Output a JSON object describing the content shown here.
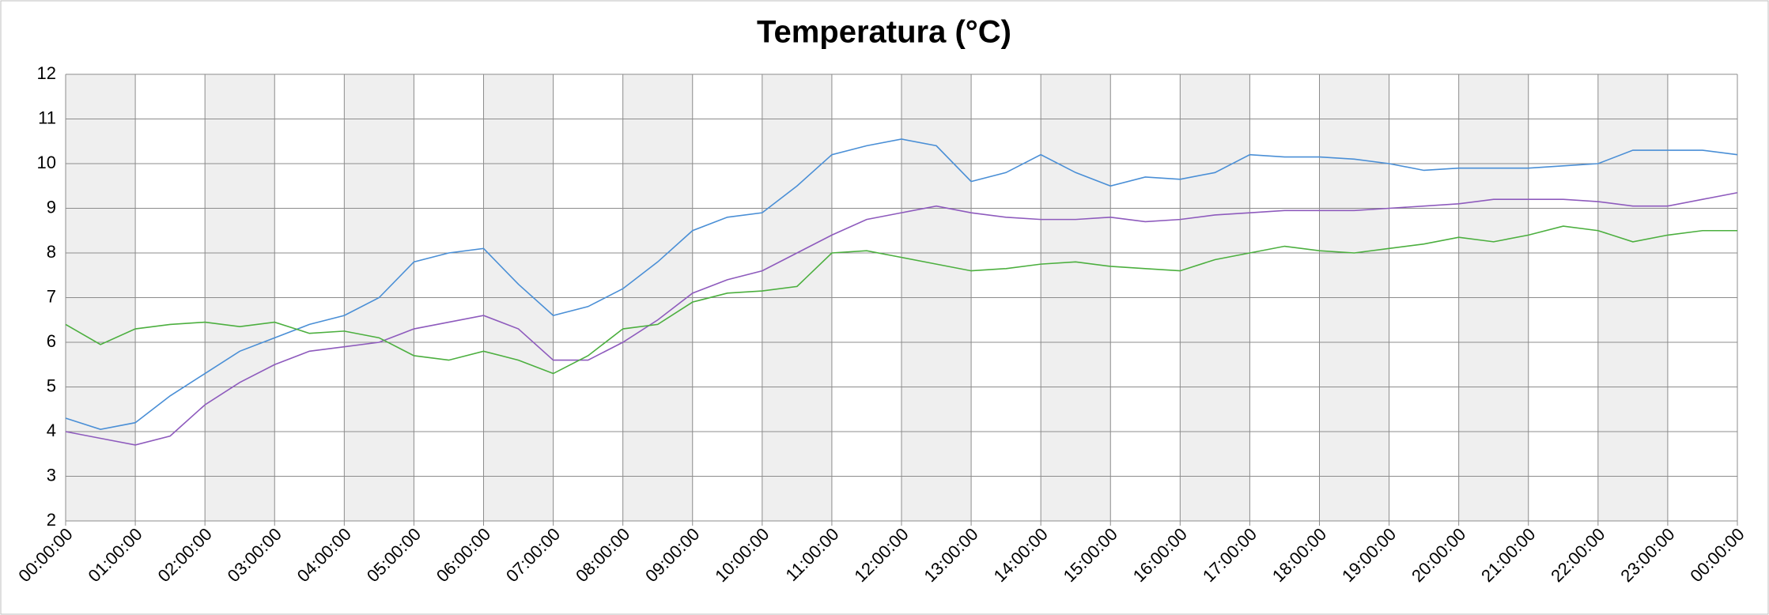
{
  "chart_data": {
    "type": "line",
    "title": "Temperatura (°C)",
    "x": [
      0,
      0.5,
      1,
      1.5,
      2,
      2.5,
      3,
      3.5,
      4,
      4.5,
      5,
      5.5,
      6,
      6.5,
      7,
      7.5,
      8,
      8.5,
      9,
      9.5,
      10,
      10.5,
      11,
      11.5,
      12,
      12.5,
      13,
      13.5,
      14,
      14.5,
      15,
      15.5,
      16,
      16.5,
      17,
      17.5,
      18,
      18.5,
      19,
      19.5,
      20,
      20.5,
      21,
      21.5,
      22,
      22.5,
      23,
      23.5,
      24
    ],
    "series": [
      {
        "color": "#4a8fd6",
        "values": [
          4.3,
          4.05,
          4.2,
          4.8,
          5.3,
          5.8,
          6.1,
          6.4,
          6.6,
          7.0,
          7.8,
          8.0,
          8.1,
          7.3,
          6.6,
          6.8,
          7.2,
          7.8,
          8.5,
          8.8,
          8.9,
          9.5,
          10.2,
          10.4,
          10.55,
          10.4,
          9.6,
          9.8,
          10.2,
          9.8,
          9.5,
          9.7,
          9.65,
          9.8,
          10.2,
          10.15,
          10.15,
          10.1,
          10.0,
          9.85,
          9.9,
          9.9,
          9.9,
          9.95,
          10.0,
          10.3,
          10.3,
          10.3,
          10.2
        ]
      },
      {
        "color": "#8e5bbd",
        "values": [
          4.0,
          3.85,
          3.7,
          3.9,
          4.6,
          5.1,
          5.5,
          5.8,
          5.9,
          6.0,
          6.3,
          6.45,
          6.6,
          6.3,
          5.6,
          5.6,
          6.0,
          6.5,
          7.1,
          7.4,
          7.6,
          8.0,
          8.4,
          8.75,
          8.9,
          9.05,
          8.9,
          8.8,
          8.75,
          8.75,
          8.8,
          8.7,
          8.75,
          8.85,
          8.9,
          8.95,
          8.95,
          8.95,
          9.0,
          9.05,
          9.1,
          9.2,
          9.2,
          9.2,
          9.15,
          9.05,
          9.05,
          9.2,
          9.35
        ]
      },
      {
        "color": "#4caf3f",
        "values": [
          6.4,
          5.95,
          6.3,
          6.4,
          6.45,
          6.35,
          6.45,
          6.2,
          6.25,
          6.1,
          5.7,
          5.6,
          5.8,
          5.6,
          5.3,
          5.7,
          6.3,
          6.4,
          6.9,
          7.1,
          7.15,
          7.25,
          8.0,
          8.05,
          7.9,
          7.75,
          7.6,
          7.65,
          7.75,
          7.8,
          7.7,
          7.65,
          7.6,
          7.85,
          8.0,
          8.15,
          8.05,
          8.0,
          8.1,
          8.2,
          8.35,
          8.25,
          8.4,
          8.6,
          8.5,
          8.25,
          8.4,
          8.5,
          8.5
        ]
      }
    ],
    "xlim": [
      0,
      24
    ],
    "xticks": [
      {
        "value": 0,
        "label": "00:00:00"
      },
      {
        "value": 1,
        "label": "01:00:00"
      },
      {
        "value": 2,
        "label": "02:00:00"
      },
      {
        "value": 3,
        "label": "03:00:00"
      },
      {
        "value": 4,
        "label": "04:00:00"
      },
      {
        "value": 5,
        "label": "05:00:00"
      },
      {
        "value": 6,
        "label": "06:00:00"
      },
      {
        "value": 7,
        "label": "07:00:00"
      },
      {
        "value": 8,
        "label": "08:00:00"
      },
      {
        "value": 9,
        "label": "09:00:00"
      },
      {
        "value": 10,
        "label": "10:00:00"
      },
      {
        "value": 11,
        "label": "11:00:00"
      },
      {
        "value": 12,
        "label": "12:00:00"
      },
      {
        "value": 13,
        "label": "13:00:00"
      },
      {
        "value": 14,
        "label": "14:00:00"
      },
      {
        "value": 15,
        "label": "15:00:00"
      },
      {
        "value": 16,
        "label": "16:00:00"
      },
      {
        "value": 17,
        "label": "17:00:00"
      },
      {
        "value": 18,
        "label": "18:00:00"
      },
      {
        "value": 19,
        "label": "19:00:00"
      },
      {
        "value": 20,
        "label": "20:00:00"
      },
      {
        "value": 21,
        "label": "21:00:00"
      },
      {
        "value": 22,
        "label": "22:00:00"
      },
      {
        "value": 23,
        "label": "23:00:00"
      },
      {
        "value": 24,
        "label": "00:00:00"
      }
    ],
    "ylim": [
      2,
      12
    ],
    "yticks": [
      2,
      3,
      4,
      5,
      6,
      7,
      8,
      9,
      10,
      11,
      12
    ],
    "grid": true
  }
}
